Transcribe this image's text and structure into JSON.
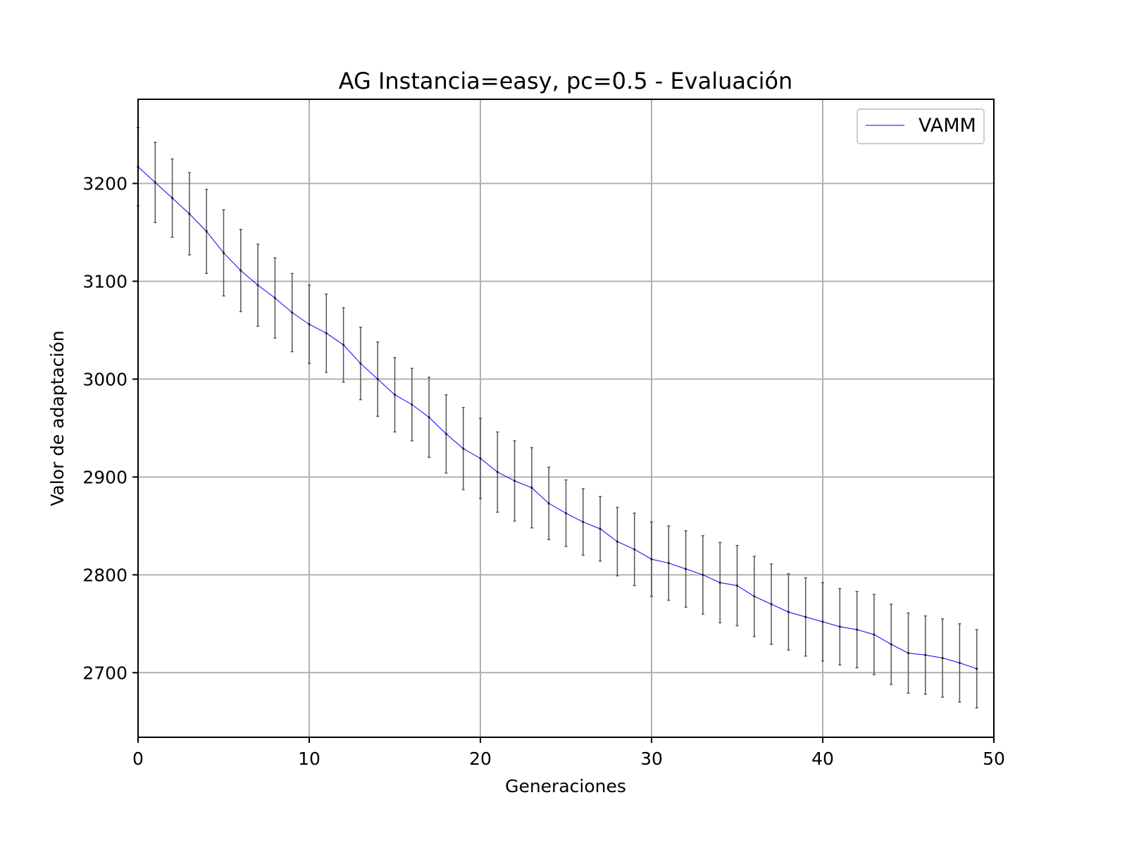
{
  "chart_data": {
    "type": "line",
    "title": "AG Instancia=easy, pc=0.5 - Evaluación",
    "xlabel": "Generaciones",
    "ylabel": "Valor de adaptación",
    "xlim": [
      0,
      50
    ],
    "ylim": [
      2634,
      2286
    ],
    "xticks": [
      0,
      10,
      20,
      30,
      40,
      50
    ],
    "yticks": [
      2700,
      2800,
      2900,
      3000,
      3100,
      3200
    ],
    "grid": true,
    "legend_position": "top-right",
    "series": [
      {
        "name": "VAMM",
        "color": "#0000ff",
        "x": [
          0,
          1,
          2,
          3,
          4,
          5,
          6,
          7,
          8,
          9,
          10,
          11,
          12,
          13,
          14,
          15,
          16,
          17,
          18,
          19,
          20,
          21,
          22,
          23,
          24,
          25,
          26,
          27,
          28,
          29,
          30,
          31,
          32,
          33,
          34,
          35,
          36,
          37,
          38,
          39,
          40,
          41,
          42,
          43,
          44,
          45,
          46,
          47,
          48,
          49
        ],
        "y": [
          3217,
          3201,
          3185,
          3169,
          3151,
          3129,
          3111,
          3096,
          3083,
          3068,
          3056,
          3047,
          3035,
          3016,
          3000,
          2984,
          2974,
          2961,
          2944,
          2929,
          2919,
          2905,
          2896,
          2889,
          2873,
          2863,
          2854,
          2847,
          2834,
          2826,
          2816,
          2812,
          2806,
          2800,
          2792,
          2789,
          2778,
          2770,
          2762,
          2757,
          2752,
          2747,
          2744,
          2739,
          2729,
          2720,
          2718,
          2715,
          2710,
          2704
        ],
        "error": [
          40,
          41,
          40,
          42,
          43,
          44,
          42,
          42,
          41,
          40,
          40,
          40,
          38,
          37,
          38,
          38,
          37,
          41,
          40,
          42,
          41,
          41,
          41,
          41,
          37,
          34,
          34,
          33,
          35,
          37,
          38,
          38,
          39,
          40,
          41,
          41,
          41,
          41,
          39,
          40,
          40,
          39,
          39,
          41,
          41,
          41,
          40,
          40,
          40,
          40
        ]
      }
    ],
    "errorbar_color": "#555555"
  }
}
